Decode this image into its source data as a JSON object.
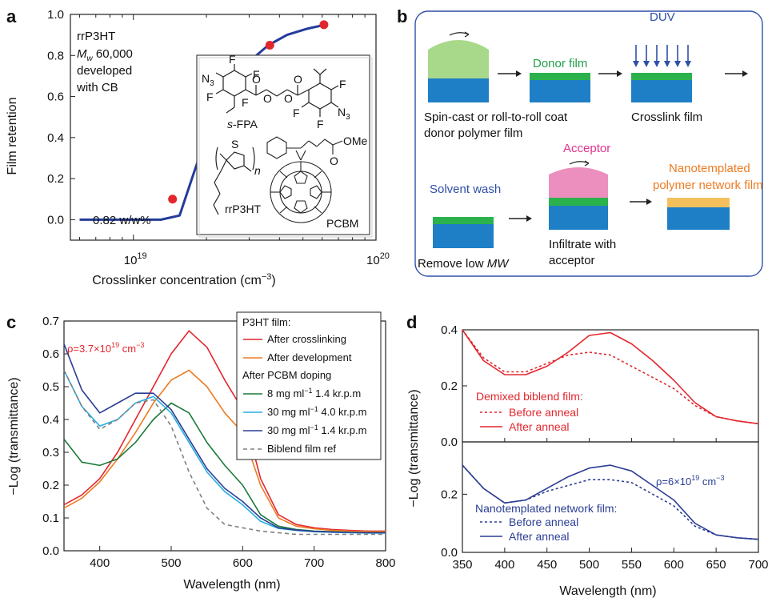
{
  "panels": {
    "a": "a",
    "b": "b",
    "c": "c",
    "d": "d"
  },
  "panel_a": {
    "notes": [
      "rrP3HT",
      "M",
      "w",
      " 60,000",
      "developed",
      "with CB"
    ],
    "concentration_label": "0.82 w/w%",
    "inset": {
      "atoms": [
        "N",
        "3",
        "F",
        "F",
        "F",
        "F",
        "O",
        "O",
        "O",
        "O",
        "F",
        "F",
        "N",
        "3",
        "F",
        "F",
        "S",
        "n",
        "O",
        "OMe"
      ],
      "molecule_names": [
        "s-FPA",
        "rrP3HT",
        "PCBM"
      ]
    }
  },
  "panel_b": {
    "labels": {
      "donor_film": "Donor film",
      "duv": "DUV",
      "step1_line1": "Spin-cast or roll-to-roll coat",
      "step1_line2": "donor polymer film",
      "step2": "Crosslink film",
      "acceptor": "Acceptor",
      "solvent_wash": "Solvent wash",
      "nanotemplated_line1": "Nanotemplated",
      "nanotemplated_line2": "polymer network film",
      "remove_low": "Remove low ",
      "mw": "MW",
      "infiltrate_line1": "Infiltrate with",
      "infiltrate_line2": "acceptor"
    },
    "colors": {
      "substrate": "#1f7fc6",
      "donor": "#2bb24c",
      "donor_wet": "#a8d98a",
      "acceptor": "#ec8fbf",
      "network": "#f4c05e",
      "duv": "#2f4fa8",
      "acceptor_text": "#e0338c",
      "network_text": "#ee7b22",
      "solvent_text": "#2f4fa8",
      "donor_text": "#22a04a"
    }
  },
  "chart_data": [
    {
      "panel": "a",
      "type": "scatter",
      "title": "",
      "xlabel": "Crosslinker concentration (cm",
      "xlabel_sup": "−3",
      "ylabel": "Film retention",
      "xscale": "log",
      "xlim": [
        5.5e+18,
        1e+20
      ],
      "ylim": [
        -0.1,
        1.0
      ],
      "xticks": [
        {
          "v": 1e+19,
          "base": "10",
          "exp": "19"
        },
        {
          "v": 1e+20,
          "base": "10",
          "exp": "20"
        }
      ],
      "yticks": [
        "0.0",
        "0.2",
        "0.4",
        "0.6",
        "0.8",
        "1.0"
      ],
      "points": {
        "x": [
          1.45e+19,
          2.45e+19,
          3.05e+19,
          3.65e+19,
          6.1e+19
        ],
        "y": [
          0.1,
          0.4,
          0.75,
          0.85,
          0.95
        ]
      },
      "fit": {
        "x": [
          6e+18,
          1.3e+19,
          1.55e+19,
          1.8e+19,
          2.1e+19,
          2.5e+19,
          3e+19,
          3.6e+19,
          4.3e+19,
          5.2e+19,
          6.2e+19
        ],
        "y": [
          0.0,
          0.0,
          0.02,
          0.25,
          0.47,
          0.64,
          0.77,
          0.85,
          0.9,
          0.93,
          0.95
        ]
      },
      "colors": {
        "points": "#e3262d",
        "fit": "#233b9b"
      }
    },
    {
      "panel": "c",
      "type": "line",
      "title": "",
      "xlabel": "Wavelength (nm)",
      "ylabel": "−Log (transmittance)",
      "xlim": [
        350,
        800
      ],
      "ylim": [
        0,
        0.7
      ],
      "xticks": [
        "400",
        "500",
        "600",
        "700",
        "800"
      ],
      "yticks": [
        "0.0",
        "0.1",
        "0.2",
        "0.3",
        "0.4",
        "0.5",
        "0.6",
        "0.7"
      ],
      "annotation": {
        "prefix": "ρ=3.7×10",
        "exp": "19",
        "unit": " cm",
        "unit_exp": "−3"
      },
      "legend": {
        "header1": "P3HT film:",
        "header2": "After PCBM doping",
        "placement": "top-right"
      },
      "x": [
        350,
        375,
        400,
        425,
        450,
        475,
        500,
        525,
        550,
        575,
        600,
        625,
        650,
        675,
        700,
        725,
        750,
        775,
        800
      ],
      "series": [
        {
          "name": "After crosslinking",
          "color": "#e3262d",
          "dash": "",
          "values": [
            0.14,
            0.17,
            0.22,
            0.3,
            0.4,
            0.5,
            0.6,
            0.67,
            0.62,
            0.52,
            0.43,
            0.22,
            0.11,
            0.08,
            0.07,
            0.065,
            0.062,
            0.06,
            0.06
          ]
        },
        {
          "name": "After development",
          "color": "#ee7b22",
          "dash": "",
          "values": [
            0.13,
            0.16,
            0.21,
            0.28,
            0.36,
            0.45,
            0.52,
            0.55,
            0.5,
            0.42,
            0.36,
            0.2,
            0.1,
            0.075,
            0.067,
            0.062,
            0.06,
            0.058,
            0.058
          ]
        },
        {
          "name": "8 mg ml",
          "name_sup": "−1",
          "name_tail": " 1.4 kr.p.m",
          "color": "#1a7a3a",
          "dash": "",
          "values": [
            0.34,
            0.27,
            0.26,
            0.28,
            0.33,
            0.4,
            0.45,
            0.42,
            0.33,
            0.26,
            0.2,
            0.11,
            0.075,
            0.065,
            0.06,
            0.058,
            0.056,
            0.055,
            0.055
          ]
        },
        {
          "name": "30 mg ml",
          "name_sup": "−1",
          "name_tail": " 4.0 kr.p.m",
          "color": "#27aee3",
          "dash": "",
          "values": [
            0.55,
            0.44,
            0.38,
            0.4,
            0.45,
            0.47,
            0.42,
            0.33,
            0.24,
            0.18,
            0.14,
            0.09,
            0.068,
            0.062,
            0.058,
            0.056,
            0.055,
            0.054,
            0.054
          ]
        },
        {
          "name": "30 mg ml",
          "name_sup": "−1",
          "name_tail": " 1.4 kr.p.m",
          "color": "#2b3d94",
          "dash": "",
          "values": [
            0.63,
            0.49,
            0.42,
            0.45,
            0.48,
            0.48,
            0.43,
            0.34,
            0.25,
            0.19,
            0.15,
            0.1,
            0.07,
            0.063,
            0.059,
            0.057,
            0.056,
            0.055,
            0.055
          ]
        },
        {
          "name": "Biblend film ref",
          "color": "#808080",
          "dash": "5,4",
          "values": [
            0.55,
            0.44,
            0.37,
            0.4,
            0.45,
            0.46,
            0.38,
            0.24,
            0.13,
            0.08,
            0.07,
            0.06,
            0.055,
            0.05,
            0.05,
            0.05,
            0.05,
            0.05,
            0.05
          ]
        }
      ]
    },
    {
      "panel": "d",
      "type": "line",
      "title": "",
      "xlabel": "Wavelength (nm)",
      "ylabel": "−Log (transmittance)",
      "xlim": [
        350,
        700
      ],
      "xticks": [
        "350",
        "400",
        "450",
        "500",
        "550",
        "600",
        "650",
        "700"
      ],
      "upper": {
        "ylim": [
          0,
          0.4
        ],
        "yticks": [
          "0.0",
          "0.2",
          "0.4"
        ],
        "legend": {
          "title": "Demixed biblend film:",
          "placement": "bottom-left"
        },
        "x": [
          350,
          375,
          400,
          425,
          450,
          475,
          500,
          525,
          550,
          575,
          600,
          625,
          650,
          675,
          700
        ],
        "series": [
          {
            "name": "Before anneal",
            "color": "#e3262d",
            "dash": "3,3",
            "values": [
              0.4,
              0.3,
              0.25,
              0.25,
              0.28,
              0.31,
              0.32,
              0.31,
              0.27,
              0.23,
              0.19,
              0.13,
              0.09,
              0.075,
              0.065
            ]
          },
          {
            "name": "After anneal",
            "color": "#e3262d",
            "dash": "",
            "values": [
              0.4,
              0.29,
              0.24,
              0.24,
              0.27,
              0.32,
              0.38,
              0.39,
              0.35,
              0.29,
              0.22,
              0.14,
              0.09,
              0.075,
              0.065
            ]
          }
        ]
      },
      "lower": {
        "ylim": [
          0,
          0.38
        ],
        "yticks": [
          "0.0",
          "0.2"
        ],
        "annotation": {
          "prefix": "ρ=6×10",
          "exp": "19",
          "unit": " cm",
          "unit_exp": "−3"
        },
        "legend": {
          "title": "Nanotemplated network film:",
          "placement": "bottom-left"
        },
        "x": [
          350,
          375,
          400,
          425,
          450,
          475,
          500,
          525,
          550,
          575,
          600,
          625,
          650,
          675,
          700
        ],
        "series": [
          {
            "name": "Before anneal",
            "color": "#2b3d94",
            "dash": "3,3",
            "values": [
              0.3,
              0.22,
              0.17,
              0.18,
              0.21,
              0.23,
              0.25,
              0.25,
              0.24,
              0.2,
              0.16,
              0.09,
              0.06,
              0.05,
              0.045
            ]
          },
          {
            "name": "After anneal",
            "color": "#2b3d94",
            "dash": "",
            "values": [
              0.3,
              0.22,
              0.17,
              0.18,
              0.22,
              0.26,
              0.29,
              0.3,
              0.28,
              0.23,
              0.18,
              0.1,
              0.06,
              0.05,
              0.045
            ]
          }
        ]
      }
    }
  ]
}
